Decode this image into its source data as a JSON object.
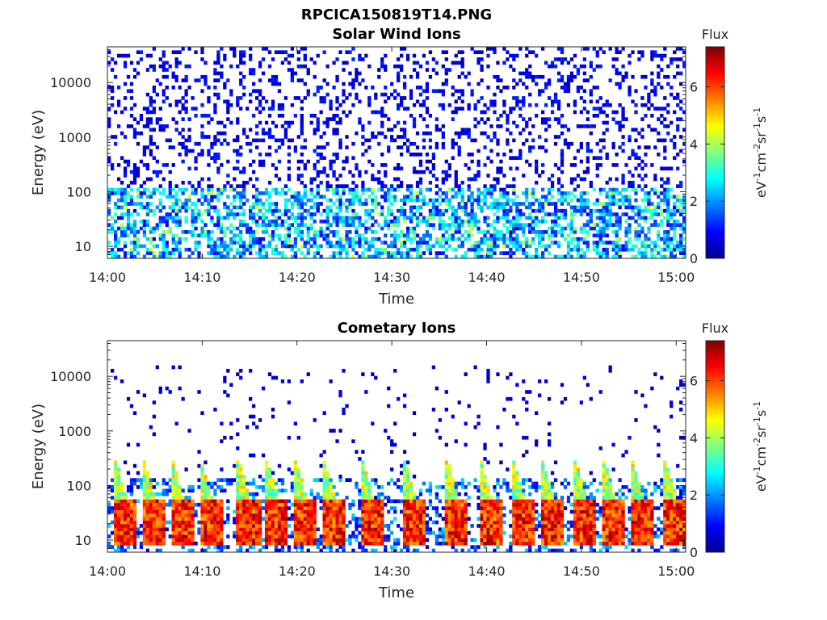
{
  "figure": {
    "title": "RPCICA150819T14.PNG"
  },
  "chart_data": [
    {
      "type": "heatmap",
      "title": "Solar Wind Ions",
      "xlabel": "Time",
      "ylabel": "Energy (eV)",
      "x_ticks": [
        "14:00",
        "14:10",
        "14:20",
        "14:30",
        "14:40",
        "14:50",
        "15:00"
      ],
      "xlim": [
        "14:00",
        "15:01"
      ],
      "y_scale": "log",
      "y_ticks": [
        "10",
        "100",
        "1000",
        "10000"
      ],
      "ylim": [
        6,
        45000
      ],
      "colorbar": {
        "label": "Flux",
        "unit": "eV-1cm-2sr-1s-1",
        "ticks": [
          "0",
          "2",
          "4",
          "6"
        ],
        "range": [
          0,
          7.4
        ],
        "colormap": "jet"
      },
      "description_of_values": "Sparse low flux (0–2) across 10–40000 eV; denser flux 2–4 between 10–100 eV with occasional bursts up to ~4.5 near 14:07, 14:23, 14:37, 14:40."
    },
    {
      "type": "heatmap",
      "title": "Cometary Ions",
      "xlabel": "Time",
      "ylabel": "Energy (eV)",
      "x_ticks": [
        "14:00",
        "14:10",
        "14:20",
        "14:30",
        "14:40",
        "14:50",
        "15:00"
      ],
      "xlim": [
        "14:00",
        "15:01"
      ],
      "y_scale": "log",
      "y_ticks": [
        "10",
        "100",
        "1000",
        "10000"
      ],
      "ylim": [
        6,
        45000
      ],
      "colorbar": {
        "label": "Flux",
        "unit": "eV-1cm-2sr-1s-1",
        "ticks": [
          "0",
          "2",
          "4",
          "6"
        ],
        "range": [
          0,
          7.4
        ],
        "colormap": "jet"
      },
      "bursts_minutes": [
        1.5,
        4.5,
        7.5,
        10.5,
        14.5,
        17.5,
        20.5,
        23.5,
        27.5,
        32,
        36.5,
        40,
        43.5,
        46.5,
        50,
        53,
        56,
        59.5
      ],
      "description_of_values": "Periodic high-flux bursts (5–7) at 10–50 eV recurring every ~3–4 minutes, with dispersed tails reaching ~300 eV; sparse low flux above 100 eV."
    }
  ]
}
